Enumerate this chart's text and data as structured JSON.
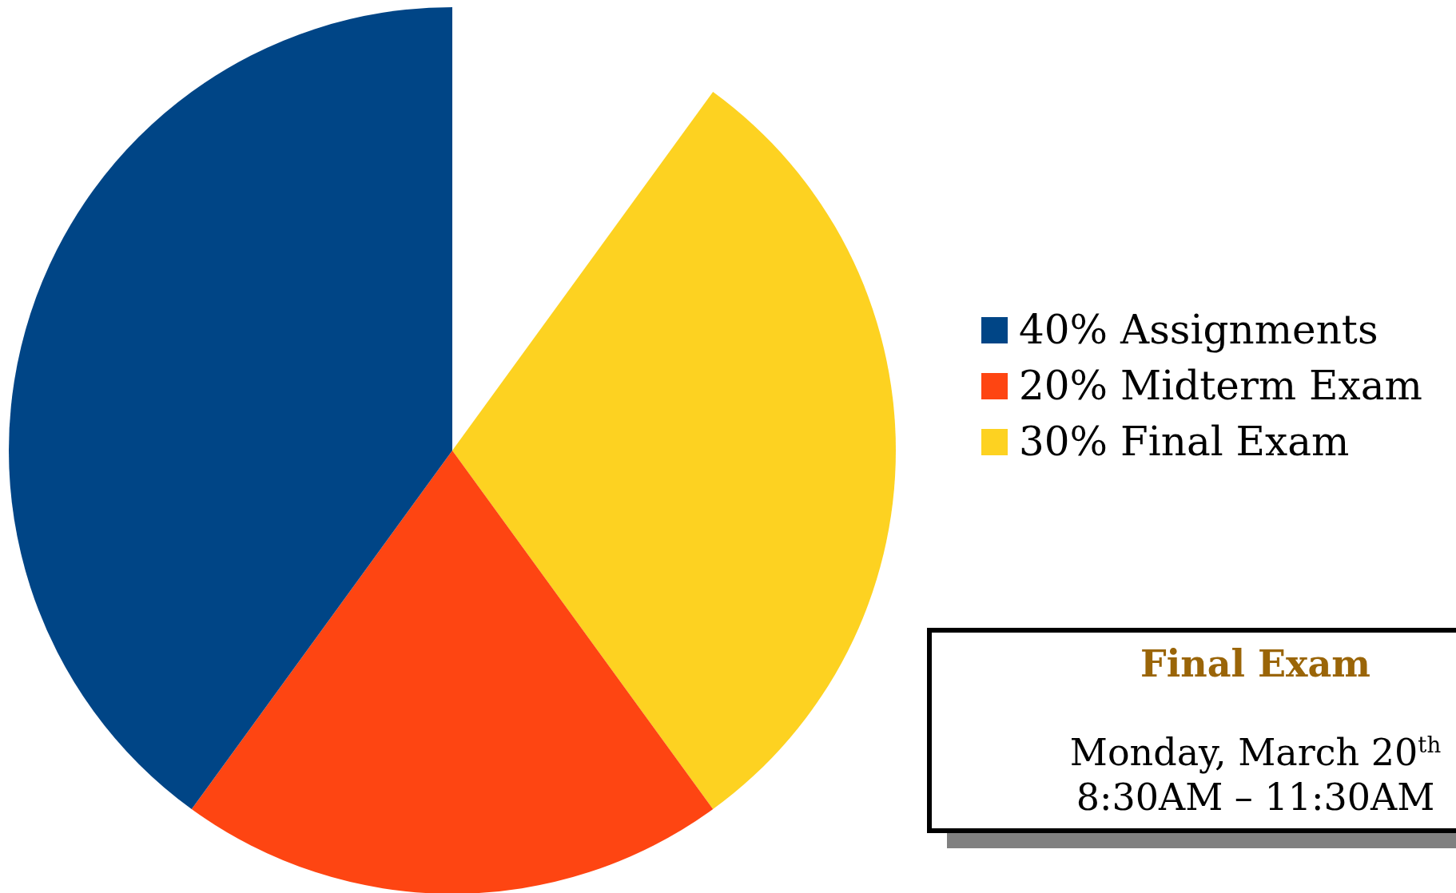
{
  "chart_data": {
    "type": "pie",
    "categories": [
      "30% Final Exam",
      "20% Midterm Exam",
      "40% Assignments"
    ],
    "values": [
      30,
      20,
      40
    ],
    "colors": [
      "#fdd221",
      "#fe4512",
      "#004586"
    ],
    "legend": "right",
    "annotations": [
      "Final Exam",
      "Monday, March 20$^{th}$",
      "8:30AM – 11:30AM"
    ]
  }
}
